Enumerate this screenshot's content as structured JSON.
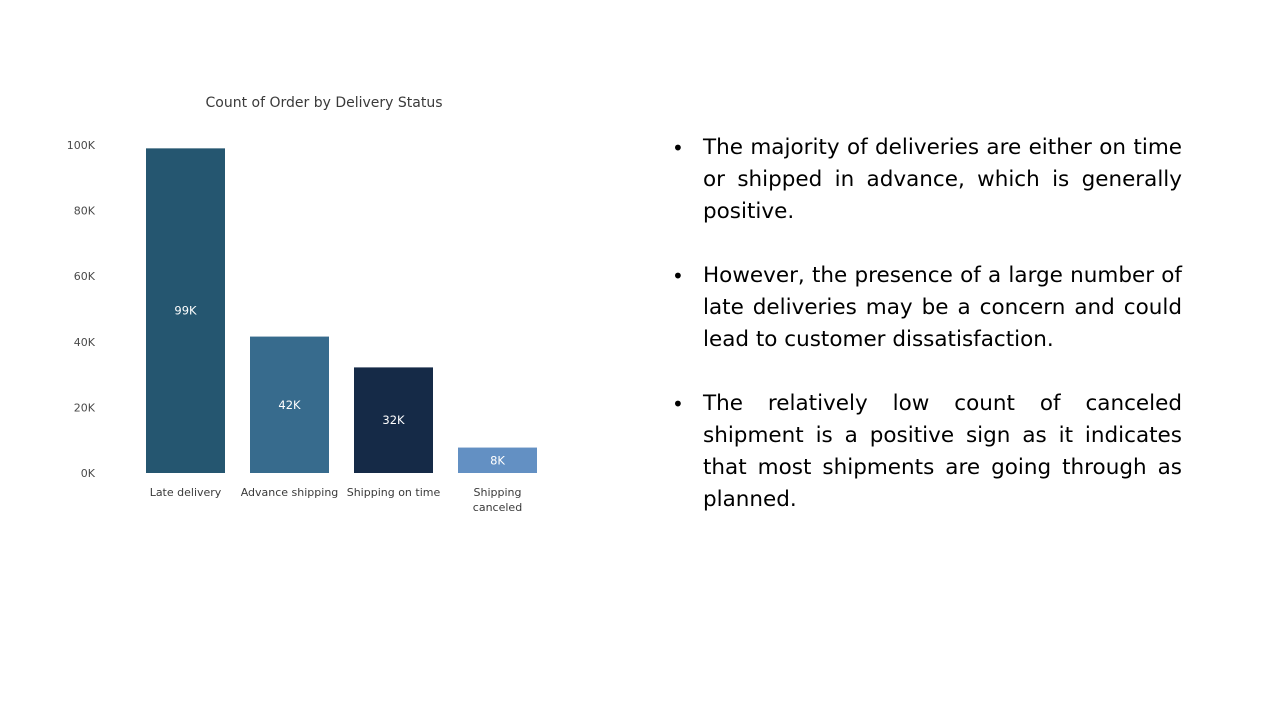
{
  "chart_data": {
    "type": "bar",
    "title": "Count of Order by Delivery Status",
    "categories": [
      "Late delivery",
      "Advance shipping",
      "Shipping on time",
      "Shipping canceled"
    ],
    "category_lines": [
      [
        "Late delivery"
      ],
      [
        "Advance shipping"
      ],
      [
        "Shipping on time"
      ],
      [
        "Shipping",
        "canceled"
      ]
    ],
    "values": [
      98977,
      41592,
      32196,
      7754
    ],
    "data_labels": [
      "99K",
      "42K",
      "32K",
      "8K"
    ],
    "bar_colors": [
      "#255670",
      "#376B8D",
      "#152A47",
      "#6390C3"
    ],
    "y_ticks": [
      0,
      20000,
      40000,
      60000,
      80000,
      100000
    ],
    "y_tick_labels": [
      "0K",
      "20K",
      "40K",
      "60K",
      "80K",
      "100K"
    ],
    "ylim": [
      0,
      100000
    ],
    "xlabel": "",
    "ylabel": "",
    "grid": false
  },
  "bullets": [
    {
      "text": "The majority of deliveries are either on time or shipped in advance, which is generally positive."
    },
    {
      "text": "However, the presence of a large number of late deliveries may be a concern and could lead to customer dissatisfaction."
    },
    {
      "text": "The relatively low count of canceled shipment is a positive sign as it indicates that most shipments are going through as planned."
    }
  ],
  "bullet_symbol": "•"
}
